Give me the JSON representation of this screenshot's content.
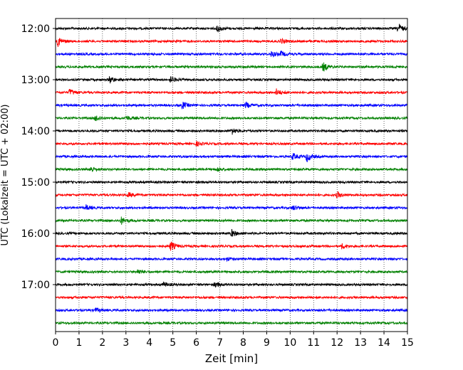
{
  "chart_data": {
    "type": "line",
    "subtype": "helicorder",
    "xlabel": "Zeit  [min]",
    "ylabel": "UTC (Lokalzeit = UTC + 02:00)",
    "xlim": [
      0,
      15
    ],
    "x_ticks": [
      0,
      1,
      2,
      3,
      4,
      5,
      6,
      7,
      8,
      9,
      10,
      11,
      12,
      13,
      14,
      15
    ],
    "x_tick_labels": [
      "0",
      "1",
      "2",
      "3",
      "4",
      "5",
      "6",
      "7",
      "8",
      "9",
      "10",
      "11",
      "12",
      "13",
      "14",
      "15"
    ],
    "y_tick_labels": [
      "12:00",
      "13:00",
      "14:00",
      "15:00",
      "16:00",
      "17:00"
    ],
    "grid": "vertical dotted lines at each minute",
    "trace_colors": [
      "#000000",
      "#ff0000",
      "#0000ff",
      "#008000"
    ],
    "traces": [
      {
        "start": "12:00",
        "events": [
          [
            6.9,
            0.7
          ],
          [
            14.6,
            1.0
          ]
        ]
      },
      {
        "start": "12:15",
        "events": [
          [
            0.1,
            1.0
          ],
          [
            9.6,
            0.5
          ]
        ]
      },
      {
        "start": "12:30",
        "events": [
          [
            9.2,
            0.6
          ],
          [
            9.6,
            0.5
          ]
        ]
      },
      {
        "start": "12:45",
        "events": [
          [
            11.4,
            0.9
          ]
        ]
      },
      {
        "start": "13:00",
        "events": [
          [
            2.3,
            0.7
          ],
          [
            4.9,
            0.6
          ]
        ]
      },
      {
        "start": "13:15",
        "events": [
          [
            0.6,
            0.7
          ],
          [
            9.4,
            0.7
          ]
        ]
      },
      {
        "start": "13:30",
        "events": [
          [
            5.4,
            0.7
          ],
          [
            8.1,
            0.6
          ]
        ]
      },
      {
        "start": "13:45",
        "events": [
          [
            1.7,
            0.6
          ],
          [
            3.0,
            0.5
          ]
        ]
      },
      {
        "start": "14:00",
        "events": [
          [
            7.5,
            0.7
          ]
        ]
      },
      {
        "start": "14:15",
        "events": [
          [
            6.0,
            0.4
          ]
        ]
      },
      {
        "start": "14:30",
        "events": [
          [
            10.1,
            0.7
          ],
          [
            10.7,
            1.0
          ]
        ]
      },
      {
        "start": "14:45",
        "events": [
          [
            1.5,
            0.6
          ],
          [
            6.9,
            0.4
          ]
        ]
      },
      {
        "start": "15:00",
        "events": []
      },
      {
        "start": "15:15",
        "events": [
          [
            3.1,
            0.5
          ],
          [
            12.0,
            0.6
          ]
        ]
      },
      {
        "start": "15:30",
        "events": [
          [
            1.3,
            0.5
          ],
          [
            10.1,
            0.5
          ]
        ]
      },
      {
        "start": "15:45",
        "events": [
          [
            2.8,
            0.7
          ]
        ]
      },
      {
        "start": "16:00",
        "events": [
          [
            7.5,
            0.7
          ]
        ]
      },
      {
        "start": "16:15",
        "events": [
          [
            4.9,
            1.0
          ],
          [
            12.2,
            0.5
          ]
        ]
      },
      {
        "start": "16:30",
        "events": [
          [
            7.3,
            0.3
          ]
        ]
      },
      {
        "start": "16:45",
        "events": [
          [
            3.5,
            0.5
          ]
        ]
      },
      {
        "start": "17:00",
        "events": [
          [
            4.6,
            0.5
          ],
          [
            6.8,
            0.5
          ]
        ]
      },
      {
        "start": "17:15",
        "events": []
      },
      {
        "start": "17:30",
        "events": [
          [
            1.7,
            0.4
          ]
        ]
      },
      {
        "start": "17:45",
        "events": []
      }
    ]
  }
}
